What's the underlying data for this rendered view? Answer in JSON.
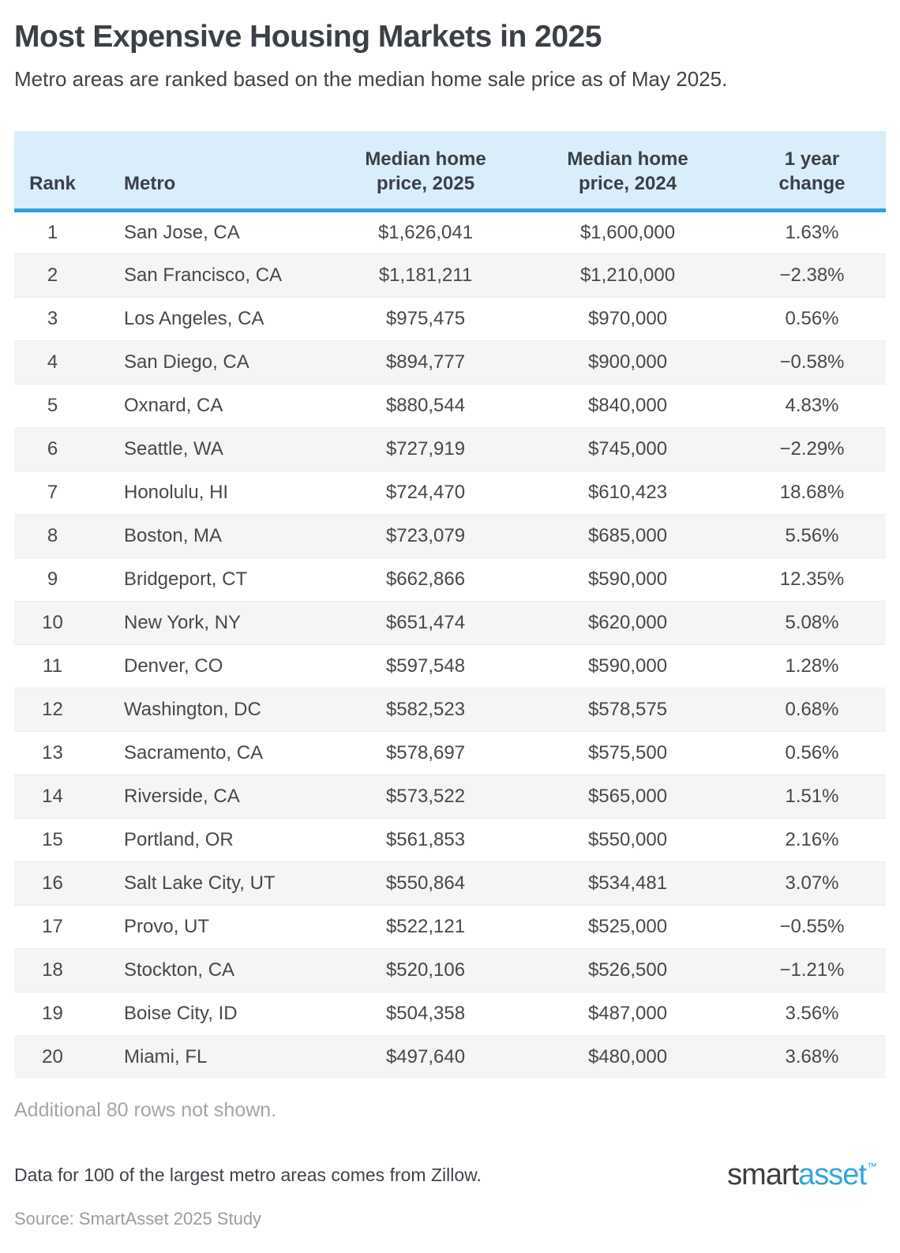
{
  "page": {
    "title": "Most Expensive Housing Markets in 2025",
    "subtitle": "Metro areas are ranked based on the median home sale price as of May 2025.",
    "additional_note": "Additional 80 rows not shown.",
    "data_note": "Data for 100 of the largest metro areas comes from Zillow.",
    "source": "Source: SmartAsset 2025 Study"
  },
  "logo": {
    "smart": "smart",
    "asset": "asset",
    "tm": "™"
  },
  "colors": {
    "header_bg": "#d9edfa",
    "header_rule": "#31a1da",
    "row_stripe": "#f5f5f5",
    "title_text": "#3b3f46",
    "body_text": "#45494d",
    "muted_text": "#a6a6a6",
    "logo_blue": "#35a3dc"
  },
  "table_header": {
    "rank": "Rank",
    "metro": "Metro",
    "price_2025_line1": "Median home",
    "price_2025_line2": "price, 2025",
    "price_2024_line1": "Median home",
    "price_2024_line2": "price, 2024",
    "change_line1": "1 year",
    "change_line2": "change"
  },
  "chart_data": {
    "type": "table",
    "title": "Most Expensive Housing Markets in 2025",
    "columns": [
      "Rank",
      "Metro",
      "Median home price, 2025",
      "Median home price, 2024",
      "1 year change"
    ],
    "rows": [
      {
        "rank": "1",
        "metro": "San Jose, CA",
        "price_2025": "$1,626,041",
        "price_2024": "$1,600,000",
        "one_year_change": "1.63%"
      },
      {
        "rank": "2",
        "metro": "San Francisco, CA",
        "price_2025": "$1,181,211",
        "price_2024": "$1,210,000",
        "one_year_change": "−2.38%"
      },
      {
        "rank": "3",
        "metro": "Los Angeles, CA",
        "price_2025": "$975,475",
        "price_2024": "$970,000",
        "one_year_change": "0.56%"
      },
      {
        "rank": "4",
        "metro": "San Diego, CA",
        "price_2025": "$894,777",
        "price_2024": "$900,000",
        "one_year_change": "−0.58%"
      },
      {
        "rank": "5",
        "metro": "Oxnard, CA",
        "price_2025": "$880,544",
        "price_2024": "$840,000",
        "one_year_change": "4.83%"
      },
      {
        "rank": "6",
        "metro": "Seattle, WA",
        "price_2025": "$727,919",
        "price_2024": "$745,000",
        "one_year_change": "−2.29%"
      },
      {
        "rank": "7",
        "metro": "Honolulu, HI",
        "price_2025": "$724,470",
        "price_2024": "$610,423",
        "one_year_change": "18.68%"
      },
      {
        "rank": "8",
        "metro": "Boston, MA",
        "price_2025": "$723,079",
        "price_2024": "$685,000",
        "one_year_change": "5.56%"
      },
      {
        "rank": "9",
        "metro": "Bridgeport, CT",
        "price_2025": "$662,866",
        "price_2024": "$590,000",
        "one_year_change": "12.35%"
      },
      {
        "rank": "10",
        "metro": "New York, NY",
        "price_2025": "$651,474",
        "price_2024": "$620,000",
        "one_year_change": "5.08%"
      },
      {
        "rank": "11",
        "metro": "Denver, CO",
        "price_2025": "$597,548",
        "price_2024": "$590,000",
        "one_year_change": "1.28%"
      },
      {
        "rank": "12",
        "metro": "Washington, DC",
        "price_2025": "$582,523",
        "price_2024": "$578,575",
        "one_year_change": "0.68%"
      },
      {
        "rank": "13",
        "metro": "Sacramento, CA",
        "price_2025": "$578,697",
        "price_2024": "$575,500",
        "one_year_change": "0.56%"
      },
      {
        "rank": "14",
        "metro": "Riverside, CA",
        "price_2025": "$573,522",
        "price_2024": "$565,000",
        "one_year_change": "1.51%"
      },
      {
        "rank": "15",
        "metro": "Portland, OR",
        "price_2025": "$561,853",
        "price_2024": "$550,000",
        "one_year_change": "2.16%"
      },
      {
        "rank": "16",
        "metro": "Salt Lake City, UT",
        "price_2025": "$550,864",
        "price_2024": "$534,481",
        "one_year_change": "3.07%"
      },
      {
        "rank": "17",
        "metro": "Provo, UT",
        "price_2025": "$522,121",
        "price_2024": "$525,000",
        "one_year_change": "−0.55%"
      },
      {
        "rank": "18",
        "metro": "Stockton, CA",
        "price_2025": "$520,106",
        "price_2024": "$526,500",
        "one_year_change": "−1.21%"
      },
      {
        "rank": "19",
        "metro": "Boise City, ID",
        "price_2025": "$504,358",
        "price_2024": "$487,000",
        "one_year_change": "3.56%"
      },
      {
        "rank": "20",
        "metro": "Miami, FL",
        "price_2025": "$497,640",
        "price_2024": "$480,000",
        "one_year_change": "3.68%"
      }
    ]
  }
}
